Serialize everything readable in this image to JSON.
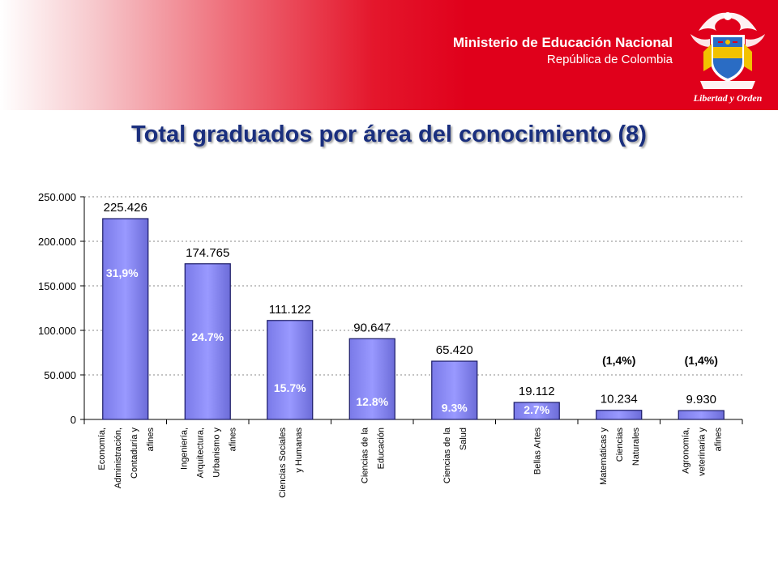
{
  "header": {
    "ministry": "Ministerio de Educación Nacional",
    "country": "República de Colombia",
    "crest_motto": "Libertad y Orden"
  },
  "colors": {
    "banner_red": "#e0001b",
    "title_blue": "#1a2f7e",
    "bar_fill": "#9999ff",
    "bar_stroke": "#1a1a66"
  },
  "chart_data": {
    "type": "bar",
    "title": "Total graduados por área del conocimiento (8)",
    "categories": [
      [
        "Economía,",
        "Administración,",
        "Contaduría y",
        "afines"
      ],
      [
        "Ingeniería,",
        "Arquitectura,",
        "Urbanismo y",
        "afines"
      ],
      [
        "Ciencias Sociales",
        "y Humanas"
      ],
      [
        "Ciencias de la",
        "Educación"
      ],
      [
        "Ciencias de la",
        "Salud"
      ],
      [
        "Bellas Artes"
      ],
      [
        "Matemáticas y",
        "Ciencias",
        "Naturales"
      ],
      [
        "Agronomía,",
        "veterinaria y",
        "afines"
      ]
    ],
    "values": [
      225426,
      174765,
      111122,
      90647,
      65420,
      19112,
      10234,
      9930
    ],
    "value_labels": [
      "225.426",
      "174.765",
      "111.122",
      "90.647",
      "65.420",
      "19.112",
      "10.234",
      "9.930"
    ],
    "percent_labels": [
      "31,9%",
      "24.7%",
      "15.7%",
      "12.8%",
      "9.3%",
      "2.7%",
      "(1,4%)",
      "(1,4%)"
    ],
    "y_ticks": [
      "0",
      "50.000",
      "100.000",
      "150.000",
      "200.000",
      "250.000"
    ],
    "ylim": [
      0,
      250000
    ],
    "grid": true
  }
}
